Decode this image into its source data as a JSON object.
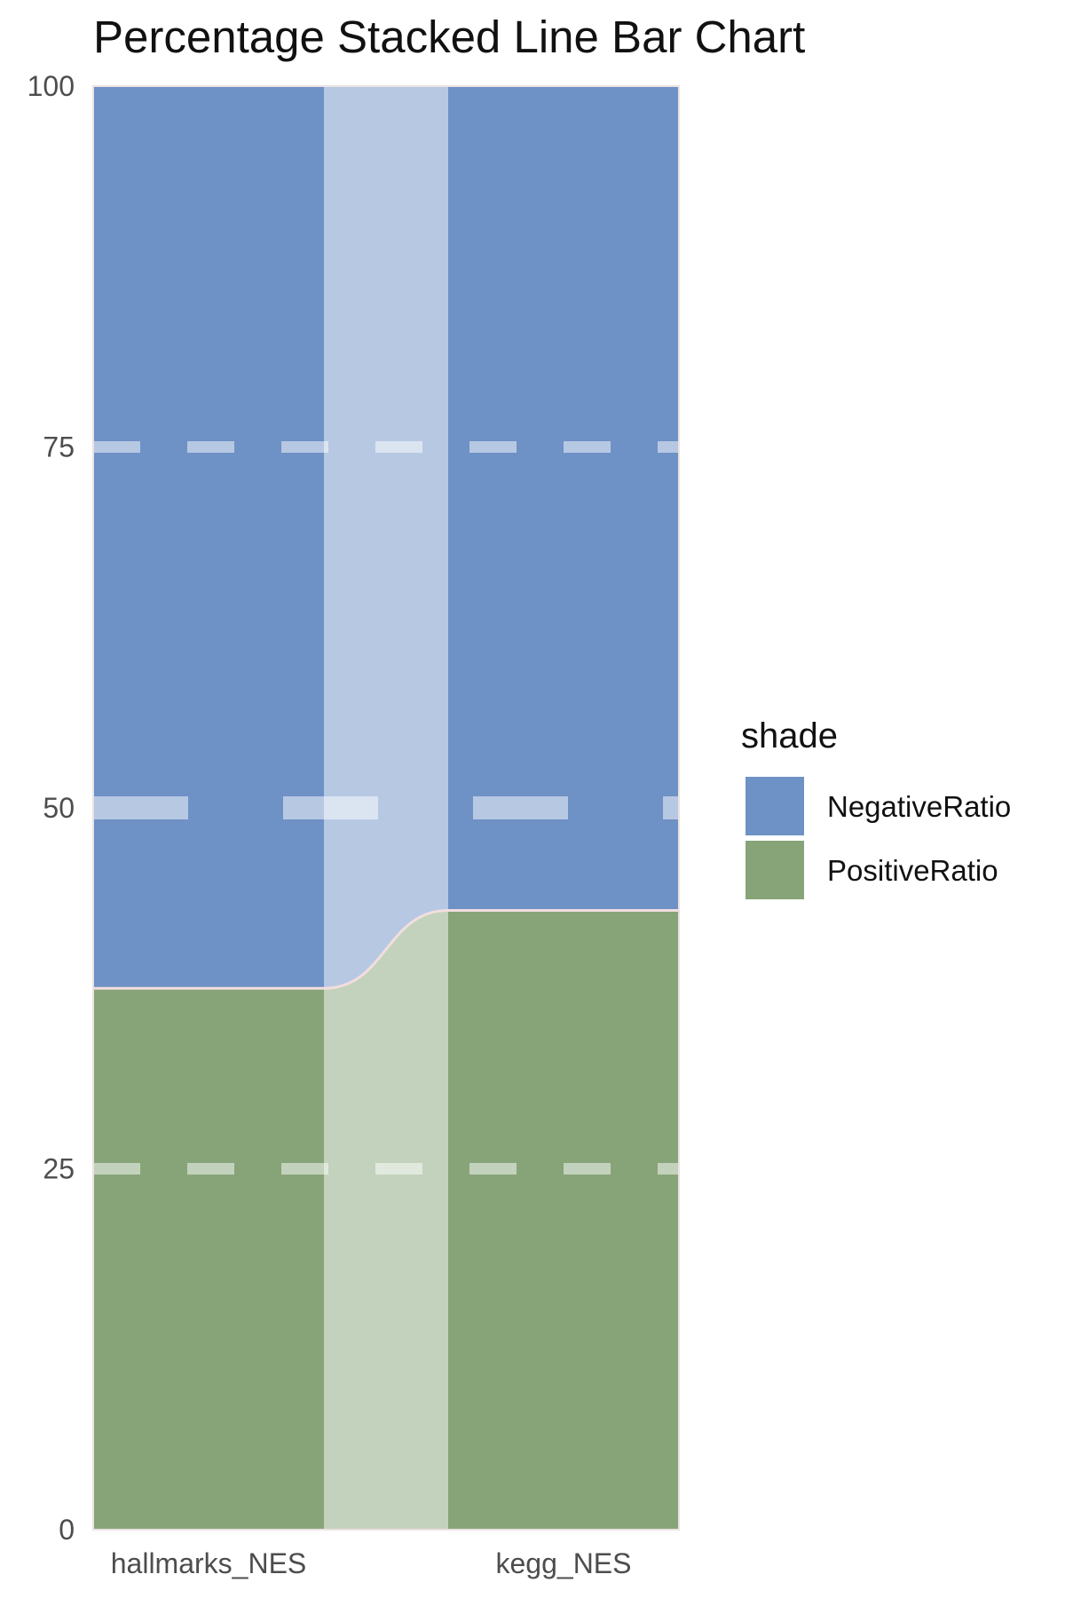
{
  "chart_data": {
    "type": "bar",
    "stacked": true,
    "percentage": true,
    "title": "Percentage Stacked Line Bar Chart",
    "xlabel": "",
    "ylabel": "",
    "categories": [
      "hallmarks_NES",
      "kegg_NES"
    ],
    "series": [
      {
        "name": "PositiveRatio",
        "values": [
          37.5,
          42.9
        ],
        "color": "#87A478"
      },
      {
        "name": "NegativeRatio",
        "values": [
          62.5,
          57.1
        ],
        "color": "#6E91C6"
      }
    ],
    "ylim": [
      0,
      100
    ],
    "yticks": [
      "0",
      "25",
      "50",
      "75",
      "100"
    ],
    "grid": true,
    "legend": {
      "title": "shade",
      "position": "right",
      "entries": [
        "NegativeRatio",
        "PositiveRatio"
      ]
    }
  }
}
